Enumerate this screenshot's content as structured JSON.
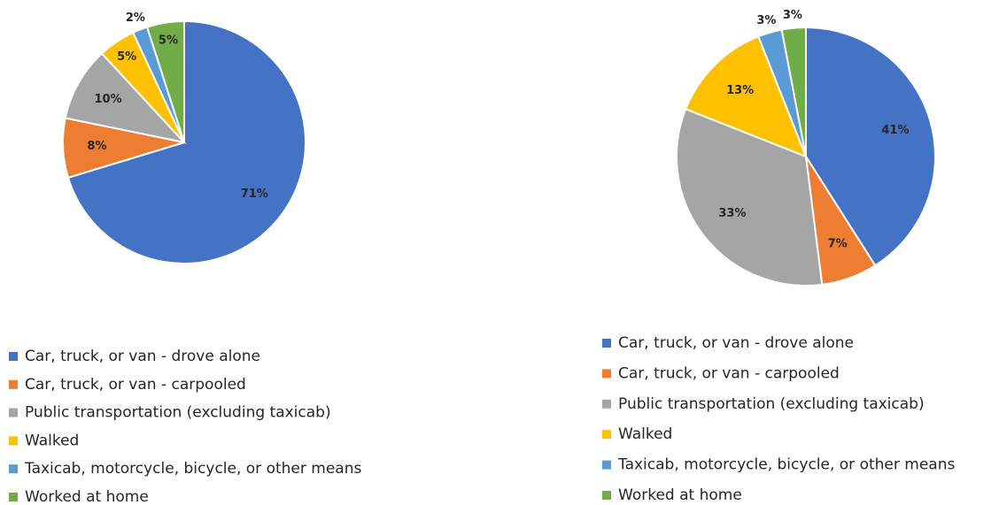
{
  "chart_data": [
    {
      "type": "pie",
      "categories": [
        "Car, truck, or van - drove alone",
        "Car, truck, or van - carpooled",
        "Public transportation (excluding taxicab)",
        "Walked",
        "Taxicab, motorcycle, bicycle, or other means",
        "Worked at home"
      ],
      "values": [
        71,
        8,
        10,
        5,
        2,
        5
      ],
      "value_labels": [
        "71%",
        "8%",
        "10%",
        "5%",
        "2%",
        "5%"
      ],
      "colors": [
        "#4472c4",
        "#ed7d31",
        "#a5a5a5",
        "#ffc000",
        "#5b9bd5",
        "#70ad47"
      ]
    },
    {
      "type": "pie",
      "categories": [
        "Car, truck, or van - drove alone",
        "Car, truck, or van - carpooled",
        "Public transportation (excluding taxicab)",
        "Walked",
        "Taxicab, motorcycle, bicycle, or other means",
        "Worked at home"
      ],
      "values": [
        41,
        7,
        33,
        13,
        3,
        3
      ],
      "value_labels": [
        "41%",
        "7%",
        "33%",
        "13%",
        "3%",
        "3%"
      ],
      "colors": [
        "#4472c4",
        "#ed7d31",
        "#a5a5a5",
        "#ffc000",
        "#5b9bd5",
        "#70ad47"
      ]
    }
  ]
}
